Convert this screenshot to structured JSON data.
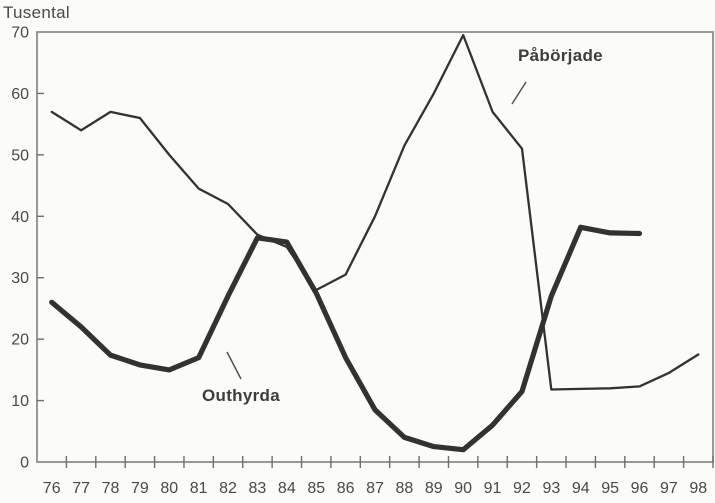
{
  "chart_data": {
    "type": "line",
    "ylabel": "Tusental",
    "x": [
      "76",
      "77",
      "78",
      "79",
      "80",
      "81",
      "82",
      "83",
      "84",
      "85",
      "86",
      "87",
      "88",
      "89",
      "90",
      "91",
      "92",
      "93",
      "94",
      "95",
      "96",
      "97",
      "98"
    ],
    "ylim": [
      0,
      70
    ],
    "yticks": [
      0,
      10,
      20,
      30,
      40,
      50,
      60,
      70
    ],
    "grid": false,
    "legend": "annotated-inline",
    "series": [
      {
        "name": "Påbörjade",
        "slug": "paborjade",
        "stroke_width": 2.3,
        "values": [
          57,
          54,
          57,
          56,
          50,
          44.5,
          42,
          37,
          35,
          28,
          30.5,
          40,
          51.5,
          60,
          69.5,
          57,
          51,
          11.8,
          11.9,
          12,
          12.3,
          14.5,
          17.5
        ]
      },
      {
        "name": "Outhyrda",
        "slug": "outhyrda",
        "stroke_width": 5.2,
        "values": [
          26,
          22,
          17.4,
          15.8,
          15,
          17,
          27,
          36.5,
          35.8,
          27.5,
          17,
          8.5,
          4,
          2.5,
          2,
          6,
          11.5,
          27,
          38.2,
          37.3,
          37.2
        ]
      }
    ],
    "annotations": [
      {
        "text": "Påbörjade",
        "pointer": [
          526,
          82,
          512,
          104
        ]
      },
      {
        "text": "Outhyrda",
        "pointer": [
          227,
          352,
          241,
          379
        ]
      }
    ],
    "colors": {
      "line": "#34322e",
      "frame": "#82807b",
      "tick": "#6f6d68",
      "text": "#4b4845",
      "pointer": "#55524e",
      "background": "#fbfbf8"
    }
  }
}
